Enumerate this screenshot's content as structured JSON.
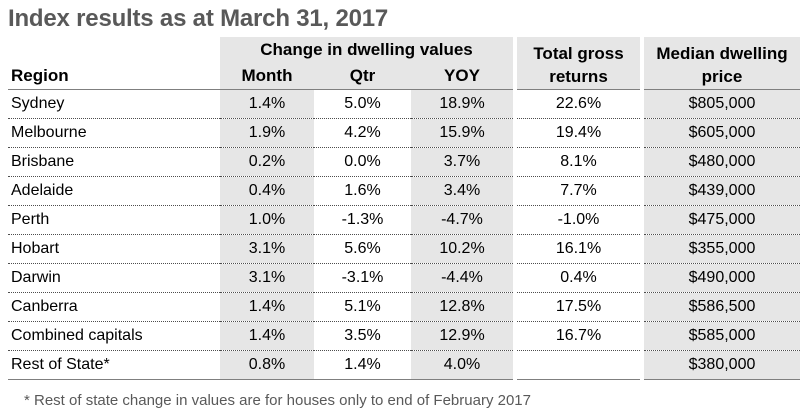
{
  "title": "Index results as at March 31, 2017",
  "table": {
    "headers": {
      "region": "Region",
      "change_group": "Change in dwelling values",
      "month": "Month",
      "qtr": "Qtr",
      "yoy": "YOY",
      "total_gross_returns": "Total gross returns",
      "median_dwelling_price": "Median dwelling price"
    },
    "rows": [
      {
        "region": "Sydney",
        "month": "1.4%",
        "qtr": "5.0%",
        "yoy": "18.9%",
        "total": "22.6%",
        "median": "$805,000"
      },
      {
        "region": "Melbourne",
        "month": "1.9%",
        "qtr": "4.2%",
        "yoy": "15.9%",
        "total": "19.4%",
        "median": "$605,000"
      },
      {
        "region": "Brisbane",
        "month": "0.2%",
        "qtr": "0.0%",
        "yoy": "3.7%",
        "total": "8.1%",
        "median": "$480,000"
      },
      {
        "region": "Adelaide",
        "month": "0.4%",
        "qtr": "1.6%",
        "yoy": "3.4%",
        "total": "7.7%",
        "median": "$439,000"
      },
      {
        "region": "Perth",
        "month": "1.0%",
        "qtr": "-1.3%",
        "yoy": "-4.7%",
        "total": "-1.0%",
        "median": "$475,000"
      },
      {
        "region": "Hobart",
        "month": "3.1%",
        "qtr": "5.6%",
        "yoy": "10.2%",
        "total": "16.1%",
        "median": "$355,000"
      },
      {
        "region": "Darwin",
        "month": "3.1%",
        "qtr": "-3.1%",
        "yoy": "-4.4%",
        "total": "0.4%",
        "median": "$490,000"
      },
      {
        "region": "Canberra",
        "month": "1.4%",
        "qtr": "5.1%",
        "yoy": "12.8%",
        "total": "17.5%",
        "median": "$586,500"
      },
      {
        "region": "Combined capitals",
        "month": "1.4%",
        "qtr": "3.5%",
        "yoy": "12.9%",
        "total": "16.7%",
        "median": "$585,000"
      },
      {
        "region": "Rest of State*",
        "month": "0.8%",
        "qtr": "1.4%",
        "yoy": "4.0%",
        "total": "",
        "median": "$380,000"
      }
    ]
  },
  "footnote": "* Rest of state change in values are for houses only to end of February 2017",
  "colors": {
    "shade": "#e6e6e6",
    "title": "#595959"
  }
}
